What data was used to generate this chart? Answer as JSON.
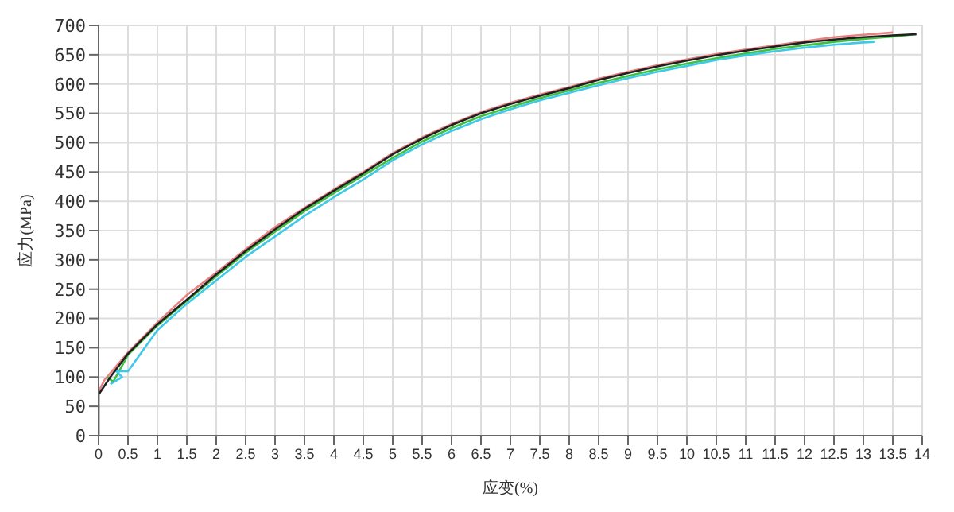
{
  "chart_data": {
    "type": "line",
    "xlabel": "应变(%)",
    "ylabel": "应力(MPa)",
    "xlim": [
      0,
      14
    ],
    "ylim": [
      0,
      700
    ],
    "xticks": [
      0,
      0.5,
      1,
      1.5,
      2,
      2.5,
      3,
      3.5,
      4,
      4.5,
      5,
      5.5,
      6,
      6.5,
      7,
      7.5,
      8,
      8.5,
      9,
      9.5,
      10,
      10.5,
      11,
      11.5,
      12,
      12.5,
      13,
      13.5,
      14
    ],
    "yticks": [
      0,
      50,
      100,
      150,
      200,
      250,
      300,
      350,
      400,
      450,
      500,
      550,
      600,
      650,
      700
    ],
    "grid": true,
    "marker": "none",
    "line_style": "solid",
    "series": [
      {
        "color": "#e88080",
        "x": [
          0,
          0.1,
          0.5,
          1,
          1.5,
          2,
          2.5,
          3,
          3.5,
          4,
          4.5,
          5,
          5.5,
          6,
          6.5,
          7,
          7.5,
          8,
          8.5,
          9,
          9.5,
          10,
          10.5,
          11,
          11.5,
          12,
          12.5,
          13,
          13.5
        ],
        "values": [
          75,
          95,
          142,
          193,
          240,
          278,
          318,
          356,
          389,
          420,
          450,
          482,
          509,
          532,
          552,
          568,
          582,
          595,
          609,
          621,
          632,
          642,
          651,
          659,
          666,
          673,
          680,
          684,
          688
        ]
      },
      {
        "color": "#40c040",
        "x": [
          0.15,
          0.25,
          0.5,
          1,
          1.5,
          2,
          2.5,
          3,
          3.5,
          4,
          4.5,
          5,
          5.5,
          6,
          6.5,
          7,
          7.5,
          8,
          8.5,
          9,
          9.5,
          10,
          10.5,
          11,
          11.5,
          12,
          12.5,
          13,
          13.5,
          13.9
        ],
        "values": [
          100,
          92,
          138,
          188,
          230,
          272,
          312,
          348,
          383,
          414,
          444,
          474,
          502,
          525,
          545,
          561,
          576,
          589,
          602,
          614,
          625,
          635,
          644,
          652,
          660,
          666,
          672,
          677,
          681,
          685
        ]
      },
      {
        "color": "#40c8e8",
        "x": [
          0.2,
          0.4,
          0.3,
          0.5,
          1,
          1.5,
          2,
          2.5,
          3,
          3.5,
          4,
          4.5,
          5,
          5.5,
          6,
          6.5,
          7,
          7.5,
          8,
          8.5,
          9,
          9.5,
          10,
          10.5,
          11,
          11.5,
          12,
          12.5,
          13,
          13.2
        ],
        "values": [
          88,
          100,
          110,
          110,
          180,
          225,
          265,
          305,
          340,
          375,
          407,
          437,
          470,
          497,
          520,
          540,
          557,
          572,
          585,
          598,
          610,
          621,
          631,
          641,
          649,
          656,
          662,
          667,
          671,
          672
        ]
      },
      {
        "color": "#202020",
        "x": [
          0,
          0,
          0.2,
          0.5,
          1,
          1.5,
          2,
          2.5,
          3,
          3.5,
          4,
          4.5,
          5,
          5.5,
          6,
          6.5,
          7,
          7.5,
          8,
          8.5,
          9,
          9.5,
          10,
          10.5,
          11,
          11.5,
          12,
          12.5,
          13,
          13.5,
          13.9
        ],
        "values": [
          0,
          70,
          100,
          140,
          190,
          232,
          275,
          315,
          352,
          387,
          418,
          448,
          480,
          507,
          530,
          550,
          566,
          580,
          593,
          607,
          619,
          630,
          640,
          649,
          657,
          664,
          671,
          676,
          680,
          683,
          685
        ]
      }
    ]
  }
}
